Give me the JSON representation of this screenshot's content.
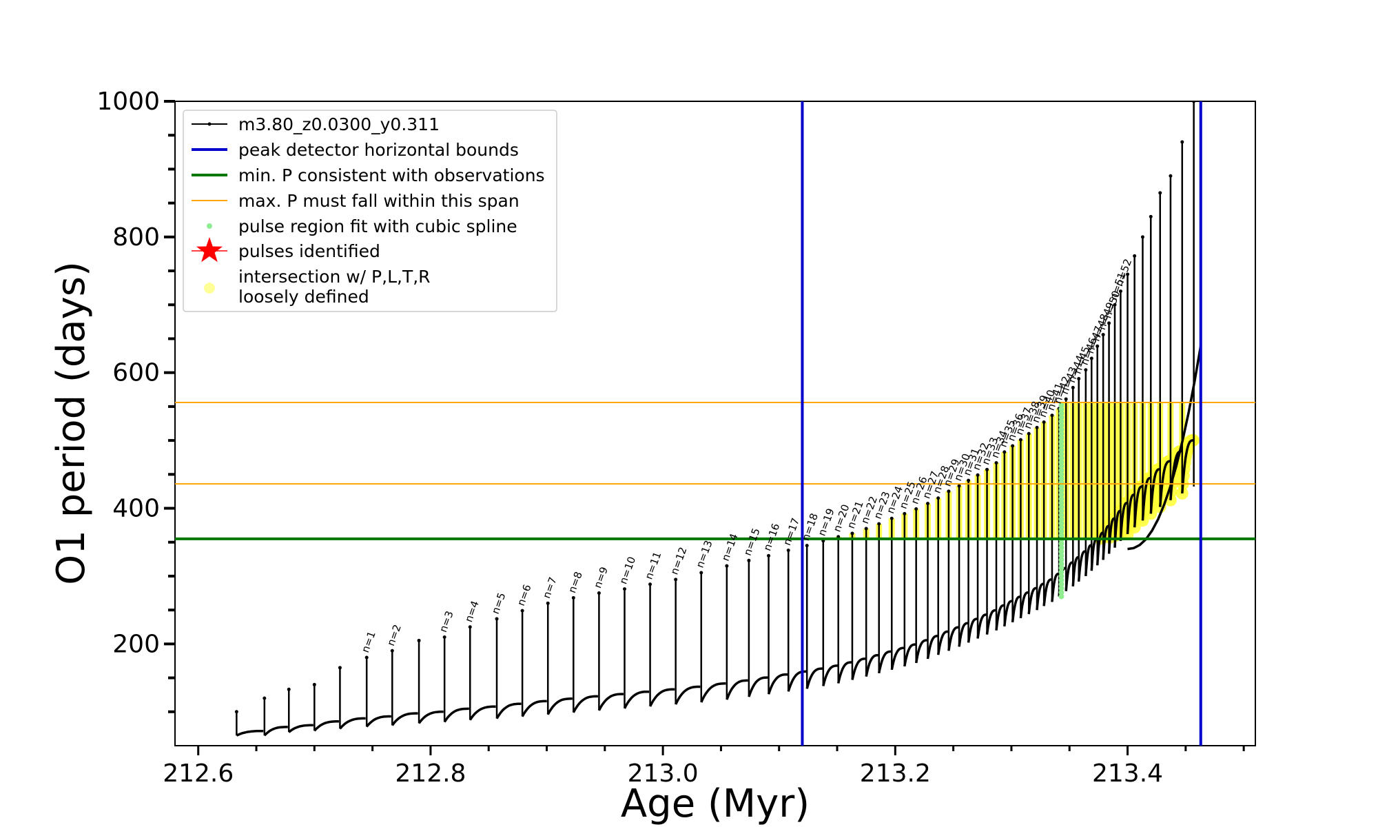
{
  "chart_data": {
    "type": "line",
    "xlabel": "Age (Myr)",
    "ylabel": "O1 period (days)",
    "xlim": [
      212.58,
      213.51
    ],
    "ylim": [
      50,
      1000
    ],
    "x_ticks": [
      212.6,
      212.8,
      213.0,
      213.2,
      213.4
    ],
    "x_tick_labels": [
      "212.6",
      "212.8",
      "213.0",
      "213.2",
      "213.4"
    ],
    "y_ticks": [
      200,
      400,
      600,
      800,
      1000
    ],
    "y_tick_labels": [
      "200",
      "400",
      "600",
      "800",
      "1000"
    ],
    "grid": false,
    "legend_position": "top-left",
    "legend": [
      {
        "label": "m3.80_z0.0300_y0.311",
        "style": "black-line-dots"
      },
      {
        "label": "peak detector horizontal bounds",
        "style": "blue-line"
      },
      {
        "label": "min. P consistent with observations",
        "style": "green-line"
      },
      {
        "label": "max. P must fall within this span",
        "style": "orange-line"
      },
      {
        "label": "pulse region fit with cubic spline",
        "style": "lightgreen-dot"
      },
      {
        "label": "pulses identified",
        "style": "red-star"
      },
      {
        "label": "intersection w/ P,L,T,R",
        "style": "yellow-dot"
      },
      {
        "label": "loosely defined",
        "style": "legend-continuation"
      }
    ],
    "vertical_lines": [
      {
        "name": "peak detector horizontal bounds",
        "x": 213.12,
        "color": "#0000cc"
      },
      {
        "name": "peak detector horizontal bounds",
        "x": 213.463,
        "color": "#0000cc"
      }
    ],
    "horizontal_lines": [
      {
        "name": "min. P consistent with observations",
        "y": 355,
        "color": "#007700"
      },
      {
        "name": "max. P must fall within this span",
        "y": 436,
        "color": "#ffa500"
      },
      {
        "name": "max. P must fall within this span",
        "y": 556,
        "color": "#ffa500"
      }
    ],
    "series": [
      {
        "name": "m3.80_z0.0300_y0.311",
        "color": "#000000",
        "pulses": [
          {
            "x": 212.633,
            "min": 65,
            "peak": 100,
            "label": ""
          },
          {
            "x": 212.657,
            "min": 65,
            "peak": 120,
            "label": ""
          },
          {
            "x": 212.678,
            "min": 70,
            "peak": 133,
            "label": ""
          },
          {
            "x": 212.7,
            "min": 72,
            "peak": 140,
            "label": ""
          },
          {
            "x": 212.722,
            "min": 75,
            "peak": 165,
            "label": ""
          },
          {
            "x": 212.745,
            "min": 78,
            "peak": 180,
            "label": "n=1"
          },
          {
            "x": 212.767,
            "min": 80,
            "peak": 190,
            "label": "n=2"
          },
          {
            "x": 212.79,
            "min": 83,
            "peak": 205,
            "label": ""
          },
          {
            "x": 212.812,
            "min": 85,
            "peak": 210,
            "label": "n=3"
          },
          {
            "x": 212.834,
            "min": 88,
            "peak": 225,
            "label": "n=4"
          },
          {
            "x": 212.857,
            "min": 90,
            "peak": 237,
            "label": "n=5"
          },
          {
            "x": 212.879,
            "min": 93,
            "peak": 249,
            "label": "n=6"
          },
          {
            "x": 212.901,
            "min": 96,
            "peak": 260,
            "label": "n=7"
          },
          {
            "x": 212.923,
            "min": 99,
            "peak": 268,
            "label": "n=8"
          },
          {
            "x": 212.945,
            "min": 102,
            "peak": 275,
            "label": "n=9"
          },
          {
            "x": 212.967,
            "min": 105,
            "peak": 281,
            "label": "n=10"
          },
          {
            "x": 212.989,
            "min": 108,
            "peak": 288,
            "label": "n=11"
          },
          {
            "x": 213.011,
            "min": 111,
            "peak": 295,
            "label": "n=12"
          },
          {
            "x": 213.033,
            "min": 114,
            "peak": 305,
            "label": "n=13"
          },
          {
            "x": 213.055,
            "min": 118,
            "peak": 315,
            "label": "n=14"
          },
          {
            "x": 213.074,
            "min": 122,
            "peak": 323,
            "label": "n=15"
          },
          {
            "x": 213.091,
            "min": 126,
            "peak": 330,
            "label": "n=16"
          },
          {
            "x": 213.108,
            "min": 130,
            "peak": 338,
            "label": "n=17"
          },
          {
            "x": 213.124,
            "min": 134,
            "peak": 345,
            "label": "n=18"
          },
          {
            "x": 213.138,
            "min": 138,
            "peak": 352,
            "label": "n=19"
          },
          {
            "x": 213.151,
            "min": 142,
            "peak": 358,
            "label": "n=20"
          },
          {
            "x": 213.163,
            "min": 147,
            "peak": 363,
            "label": "n=21"
          },
          {
            "x": 213.175,
            "min": 152,
            "peak": 370,
            "label": "n=22"
          },
          {
            "x": 213.186,
            "min": 157,
            "peak": 377,
            "label": "n=23"
          },
          {
            "x": 213.197,
            "min": 162,
            "peak": 385,
            "label": "n=24"
          },
          {
            "x": 213.208,
            "min": 167,
            "peak": 392,
            "label": "n=25"
          },
          {
            "x": 213.218,
            "min": 172,
            "peak": 399,
            "label": "n=26"
          },
          {
            "x": 213.228,
            "min": 178,
            "peak": 407,
            "label": "n=27"
          },
          {
            "x": 213.237,
            "min": 184,
            "peak": 415,
            "label": "n=28"
          },
          {
            "x": 213.246,
            "min": 190,
            "peak": 425,
            "label": "n=29"
          },
          {
            "x": 213.255,
            "min": 196,
            "peak": 433,
            "label": "n=30"
          },
          {
            "x": 213.263,
            "min": 202,
            "peak": 441,
            "label": "n=31"
          },
          {
            "x": 213.271,
            "min": 208,
            "peak": 449,
            "label": "n=32"
          },
          {
            "x": 213.279,
            "min": 214,
            "peak": 457,
            "label": "n=33"
          },
          {
            "x": 213.287,
            "min": 220,
            "peak": 467,
            "label": "n=34"
          },
          {
            "x": 213.294,
            "min": 226,
            "peak": 483,
            "label": "n=35"
          },
          {
            "x": 213.301,
            "min": 232,
            "peak": 492,
            "label": "n=36"
          },
          {
            "x": 213.308,
            "min": 238,
            "peak": 501,
            "label": "n=37"
          },
          {
            "x": 213.315,
            "min": 244,
            "peak": 510,
            "label": "n=38"
          },
          {
            "x": 213.322,
            "min": 250,
            "peak": 519,
            "label": "n=39"
          },
          {
            "x": 213.328,
            "min": 256,
            "peak": 527,
            "label": "n=40"
          },
          {
            "x": 213.335,
            "min": 262,
            "peak": 537,
            "label": "n=41"
          },
          {
            "x": 213.341,
            "min": 270,
            "peak": 547,
            "label": "n=42"
          },
          {
            "x": 213.347,
            "min": 278,
            "peak": 561,
            "label": "n=43"
          },
          {
            "x": 213.353,
            "min": 285,
            "peak": 578,
            "label": "n=44"
          },
          {
            "x": 213.358,
            "min": 292,
            "peak": 591,
            "label": "n=45"
          },
          {
            "x": 213.364,
            "min": 300,
            "peak": 604,
            "label": "n=46"
          },
          {
            "x": 213.369,
            "min": 308,
            "peak": 621,
            "label": "n=47"
          },
          {
            "x": 213.374,
            "min": 316,
            "peak": 639,
            "label": "n=48"
          },
          {
            "x": 213.379,
            "min": 324,
            "peak": 656,
            "label": "n=49"
          },
          {
            "x": 213.384,
            "min": 333,
            "peak": 673,
            "label": "n=50"
          },
          {
            "x": 213.389,
            "min": 342,
            "peak": 700,
            "label": "n=51"
          },
          {
            "x": 213.394,
            "min": 352,
            "peak": 720,
            "label": "n=52"
          },
          {
            "x": 213.4,
            "min": 362,
            "peak": 745,
            "label": ""
          },
          {
            "x": 213.406,
            "min": 372,
            "peak": 772,
            "label": ""
          },
          {
            "x": 213.413,
            "min": 382,
            "peak": 800,
            "label": ""
          },
          {
            "x": 213.42,
            "min": 392,
            "peak": 830,
            "label": ""
          },
          {
            "x": 213.428,
            "min": 402,
            "peak": 865,
            "label": ""
          },
          {
            "x": 213.437,
            "min": 412,
            "peak": 890,
            "label": ""
          },
          {
            "x": 213.447,
            "min": 422,
            "peak": 940,
            "label": ""
          },
          {
            "x": 213.457,
            "min": 432,
            "peak": 1000,
            "label": ""
          }
        ]
      },
      {
        "name": "pulse region fit with cubic spline",
        "color": "#90ee90",
        "x": 213.343,
        "y_range": [
          270,
          555
        ]
      },
      {
        "name": "intersection w/ P,L,T,R",
        "color": "#ffff33",
        "region": "pulses n=20 to end, between 355 and ~556 days"
      }
    ]
  }
}
